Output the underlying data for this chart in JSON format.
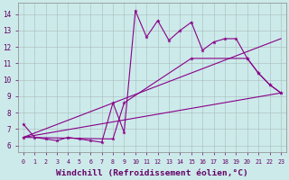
{
  "background_color": "#cceaea",
  "line_color": "#880088",
  "xlabel": "Windchill (Refroidissement éolien,°C)",
  "xlim": [
    -0.5,
    23.5
  ],
  "ylim": [
    5.6,
    14.7
  ],
  "xticks": [
    0,
    1,
    2,
    3,
    4,
    5,
    6,
    7,
    8,
    9,
    10,
    11,
    12,
    13,
    14,
    15,
    16,
    17,
    18,
    19,
    20,
    21,
    22,
    23
  ],
  "yticks": [
    6,
    7,
    8,
    9,
    10,
    11,
    12,
    13,
    14
  ],
  "line1_x": [
    0,
    1,
    2,
    3,
    4,
    5,
    6,
    7,
    8,
    9,
    10,
    11,
    12,
    13,
    14,
    15,
    16,
    17,
    18,
    19,
    20,
    21,
    22,
    23
  ],
  "line1_y": [
    7.3,
    6.5,
    6.4,
    6.3,
    6.5,
    6.4,
    6.3,
    6.2,
    8.6,
    6.8,
    14.2,
    12.6,
    13.6,
    12.4,
    13.0,
    13.5,
    11.8,
    12.3,
    12.5,
    12.5,
    11.3,
    10.4,
    9.7,
    9.2
  ],
  "line2_x": [
    0,
    23
  ],
  "line2_y": [
    6.5,
    9.2
  ],
  "line3_x": [
    0,
    8,
    9,
    15,
    20,
    21,
    22,
    23
  ],
  "line3_y": [
    6.5,
    6.4,
    8.6,
    11.3,
    11.3,
    10.4,
    9.7,
    9.2
  ],
  "line4_x": [
    0,
    23
  ],
  "line4_y": [
    6.5,
    12.5
  ]
}
